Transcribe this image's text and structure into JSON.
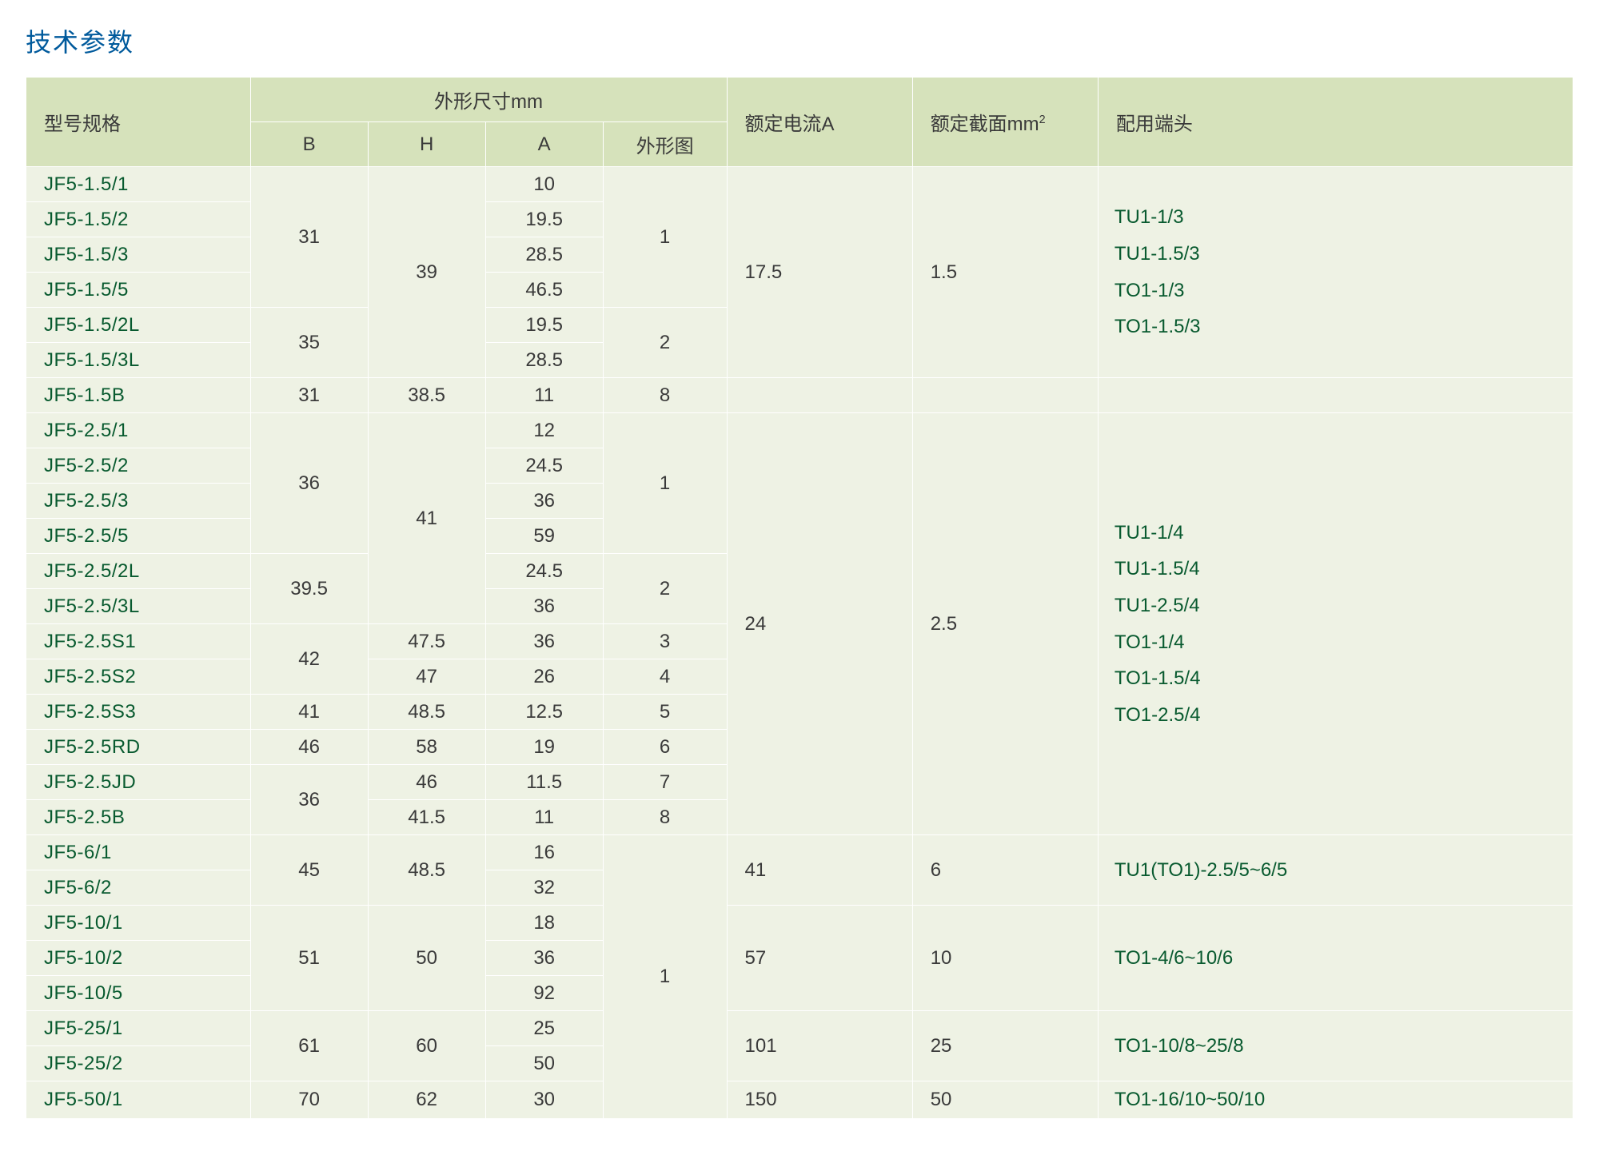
{
  "title": "技术参数",
  "colors": {
    "title_color": "#005a9c",
    "header_bg": "#d6e2bb",
    "cell_bg": "#eef2e4",
    "border_color": "#ffffff",
    "text_color": "#3a3a3a",
    "model_color": "#085a2f",
    "page_bg": "#ffffff"
  },
  "font_sizes_pt": {
    "title": 24,
    "header": 18,
    "body": 18
  },
  "column_widths_pct": {
    "model": 14.5,
    "B": 7.6,
    "H": 7.6,
    "A": 7.6,
    "shape": 8.0,
    "current": 12.0,
    "section": 12.0,
    "terminal": 30.7
  },
  "columns": {
    "model": "型号规格",
    "dims_group": "外形尺寸mm",
    "B": "B",
    "H": "H",
    "A": "A",
    "shape": "外形图",
    "current": "额定电流A",
    "section_prefix": "额定截面mm",
    "section_sup": "2",
    "terminal": "配用端头"
  },
  "groups": [
    {
      "rows": [
        {
          "model": "JF5-1.5/1",
          "A": "10"
        },
        {
          "model": "JF5-1.5/2",
          "A": "19.5"
        },
        {
          "model": "JF5-1.5/3",
          "A": "28.5"
        },
        {
          "model": "JF5-1.5/5",
          "A": "46.5"
        },
        {
          "model": "JF5-1.5/2L",
          "A": "19.5"
        },
        {
          "model": "JF5-1.5/3L",
          "A": "28.5"
        }
      ],
      "B": [
        {
          "v": "31",
          "span": 4
        },
        {
          "v": "35",
          "span": 2
        }
      ],
      "H": [
        {
          "v": "39",
          "span": 6
        }
      ],
      "shape": [
        {
          "v": "1",
          "span": 4
        },
        {
          "v": "2",
          "span": 2
        }
      ],
      "current": "17.5",
      "section": "1.5",
      "terminals": [
        "TU1-1/3",
        "TU1-1.5/3",
        "TO1-1/3",
        "TO1-1.5/3"
      ]
    },
    {
      "rows": [
        {
          "model": "JF5-1.5B",
          "A": "11"
        }
      ],
      "B": [
        {
          "v": "31",
          "span": 1
        }
      ],
      "H": [
        {
          "v": "38.5",
          "span": 1
        }
      ],
      "shape": [
        {
          "v": "8",
          "span": 1
        }
      ],
      "current": "",
      "section": "",
      "terminals": []
    },
    {
      "rows": [
        {
          "model": "JF5-2.5/1",
          "A": "12"
        },
        {
          "model": "JF5-2.5/2",
          "A": "24.5"
        },
        {
          "model": "JF5-2.5/3",
          "A": "36"
        },
        {
          "model": "JF5-2.5/5",
          "A": "59"
        },
        {
          "model": "JF5-2.5/2L",
          "A": "24.5"
        },
        {
          "model": "JF5-2.5/3L",
          "A": "36"
        },
        {
          "model": "JF5-2.5S1",
          "A": "36"
        },
        {
          "model": "JF5-2.5S2",
          "A": "26"
        },
        {
          "model": "JF5-2.5S3",
          "A": "12.5"
        },
        {
          "model": "JF5-2.5RD",
          "A": "19"
        },
        {
          "model": "JF5-2.5JD",
          "A": "11.5"
        },
        {
          "model": "JF5-2.5B",
          "A": "11"
        }
      ],
      "B": [
        {
          "v": "36",
          "span": 4
        },
        {
          "v": "39.5",
          "span": 2
        },
        {
          "v": "42",
          "span": 2
        },
        {
          "v": "41",
          "span": 1
        },
        {
          "v": "46",
          "span": 1
        },
        {
          "v": "36",
          "span": 2
        }
      ],
      "H": [
        {
          "v": "41",
          "span": 6
        },
        {
          "v": "47.5",
          "span": 1
        },
        {
          "v": "47",
          "span": 1
        },
        {
          "v": "48.5",
          "span": 1
        },
        {
          "v": "58",
          "span": 1
        },
        {
          "v": "46",
          "span": 1
        },
        {
          "v": "41.5",
          "span": 1
        }
      ],
      "shape": [
        {
          "v": "1",
          "span": 4
        },
        {
          "v": "2",
          "span": 2
        },
        {
          "v": "3",
          "span": 1
        },
        {
          "v": "4",
          "span": 1
        },
        {
          "v": "5",
          "span": 1
        },
        {
          "v": "6",
          "span": 1
        },
        {
          "v": "7",
          "span": 1
        },
        {
          "v": "8",
          "span": 1
        }
      ],
      "current": "24",
      "section": "2.5",
      "terminals": [
        "TU1-1/4",
        "TU1-1.5/4",
        "TU1-2.5/4",
        "TO1-1/4",
        "TO1-1.5/4",
        "TO1-2.5/4"
      ]
    },
    {
      "rows": [
        {
          "model": "JF5-6/1",
          "A": "16"
        },
        {
          "model": "JF5-6/2",
          "A": "32"
        }
      ],
      "B": [
        {
          "v": "45",
          "span": 2
        }
      ],
      "H": [
        {
          "v": "48.5",
          "span": 2
        }
      ],
      "shape": [
        {
          "v": "1",
          "span": 8
        }
      ],
      "current": "41",
      "section": "6",
      "terminals": [
        "TU1(TO1)-2.5/5~6/5"
      ]
    },
    {
      "rows": [
        {
          "model": "JF5-10/1",
          "A": "18"
        },
        {
          "model": "JF5-10/2",
          "A": "36"
        },
        {
          "model": "JF5-10/5",
          "A": "92"
        }
      ],
      "B": [
        {
          "v": "51",
          "span": 3
        }
      ],
      "H": [
        {
          "v": "50",
          "span": 3
        }
      ],
      "shape": [],
      "current": "57",
      "section": "10",
      "terminals": [
        "TO1-4/6~10/6"
      ]
    },
    {
      "rows": [
        {
          "model": "JF5-25/1",
          "A": "25"
        },
        {
          "model": "JF5-25/2",
          "A": "50"
        }
      ],
      "B": [
        {
          "v": "61",
          "span": 2
        }
      ],
      "H": [
        {
          "v": "60",
          "span": 2
        }
      ],
      "shape": [],
      "current": "101",
      "section": "25",
      "terminals": [
        "TO1-10/8~25/8"
      ]
    },
    {
      "rows": [
        {
          "model": "JF5-50/1",
          "A": "30"
        }
      ],
      "B": [
        {
          "v": "70",
          "span": 1
        }
      ],
      "H": [
        {
          "v": "62",
          "span": 1
        }
      ],
      "shape": [],
      "current": "150",
      "section": "50",
      "terminals": [
        "TO1-16/10~50/10"
      ]
    }
  ]
}
